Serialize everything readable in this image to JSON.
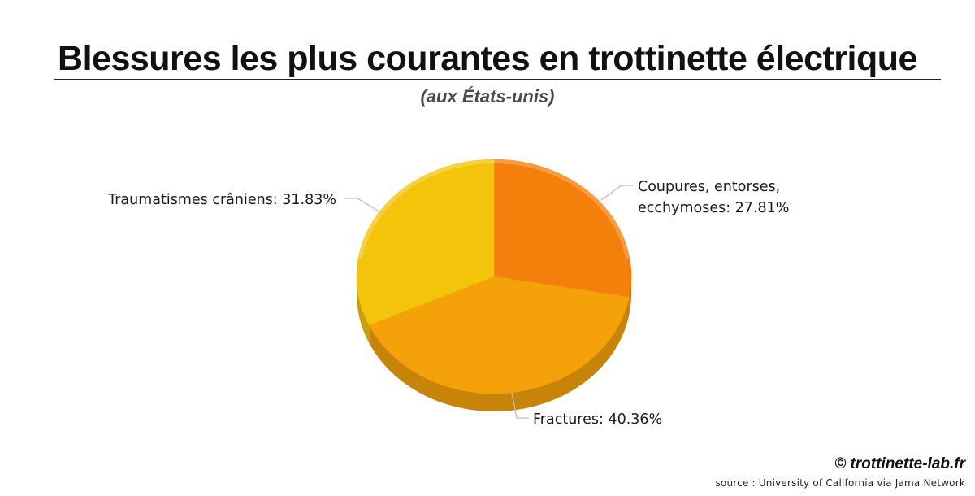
{
  "header": {
    "title": "Blessures les plus courantes en trottinette électrique",
    "subtitle": "(aux États-unis)"
  },
  "footer": {
    "brand": "© trottinette-lab.fr",
    "source": "source : University of California via Jama Network"
  },
  "chart_data": {
    "type": "pie",
    "title": "Blessures les plus courantes en trottinette électrique",
    "subtitle": "(aux États-unis)",
    "slices": [
      {
        "name": "Coupures, entorses, ecchymoses",
        "value": 27.81,
        "label_lines": [
          "Coupures, entorses,",
          "ecchymoses: 27.81%"
        ],
        "color": "#f47f0a"
      },
      {
        "name": "Fractures",
        "value": 40.36,
        "label_lines": [
          "Fractures: 40.36%"
        ],
        "color": "#f4a10a"
      },
      {
        "name": "Traumatismes crâniens",
        "value": 31.83,
        "label_lines": [
          "Traumatismes crâniens: 31.83%"
        ],
        "color": "#f4c40a"
      }
    ]
  }
}
